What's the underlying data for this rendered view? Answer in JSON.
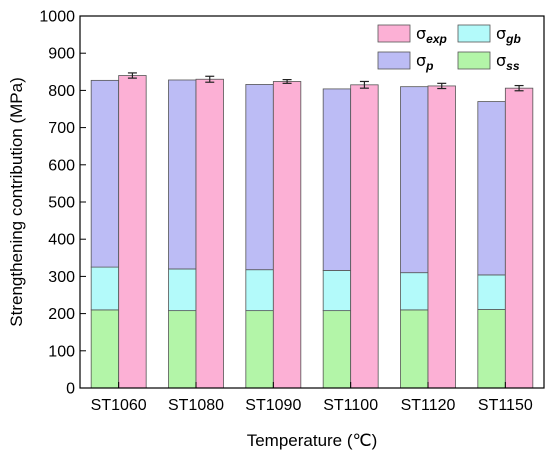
{
  "chart_data": {
    "type": "bar",
    "layout_kind": "grouped-stacked",
    "xlabel": "Temperature (℃)",
    "ylabel": "Strengthening contribution (MPa)",
    "ylim": [
      0,
      1000
    ],
    "yticks": [
      0,
      100,
      200,
      300,
      400,
      500,
      600,
      700,
      800,
      900,
      1000
    ],
    "categories": [
      "ST1060",
      "ST1080",
      "ST1090",
      "ST1100",
      "ST1120",
      "ST1150"
    ],
    "calculated_stack": [
      {
        "name": "σ_ss",
        "symbol": "σ",
        "subscript": "ss",
        "color": "#b3f5a8",
        "values": [
          210,
          208,
          208,
          208,
          210,
          211
        ]
      },
      {
        "name": "σ_gb",
        "symbol": "σ",
        "subscript": "gb",
        "color": "#b3fafa",
        "values": [
          115,
          112,
          110,
          108,
          100,
          93
        ]
      },
      {
        "name": "σ_p",
        "symbol": "σ",
        "subscript": "p",
        "color": "#bcbcf5",
        "values": [
          502,
          508,
          498,
          488,
          500,
          466
        ]
      }
    ],
    "experimental": {
      "name": "σ_exp",
      "symbol": "σ",
      "subscript": "exp",
      "color": "#fcb0d5",
      "values": [
        840,
        830,
        824,
        815,
        812,
        806
      ],
      "errors": [
        7,
        8,
        5,
        9,
        7,
        7
      ]
    },
    "legend": [
      {
        "symbol": "σ",
        "subscript": "exp",
        "color": "#fcb0d5"
      },
      {
        "symbol": "σ",
        "subscript": "gb",
        "color": "#b3fafa"
      },
      {
        "symbol": "σ",
        "subscript": "p",
        "color": "#bcbcf5"
      },
      {
        "symbol": "σ",
        "subscript": "ss",
        "color": "#b3f5a8"
      }
    ],
    "legend_position": "top-right",
    "grid": false
  }
}
